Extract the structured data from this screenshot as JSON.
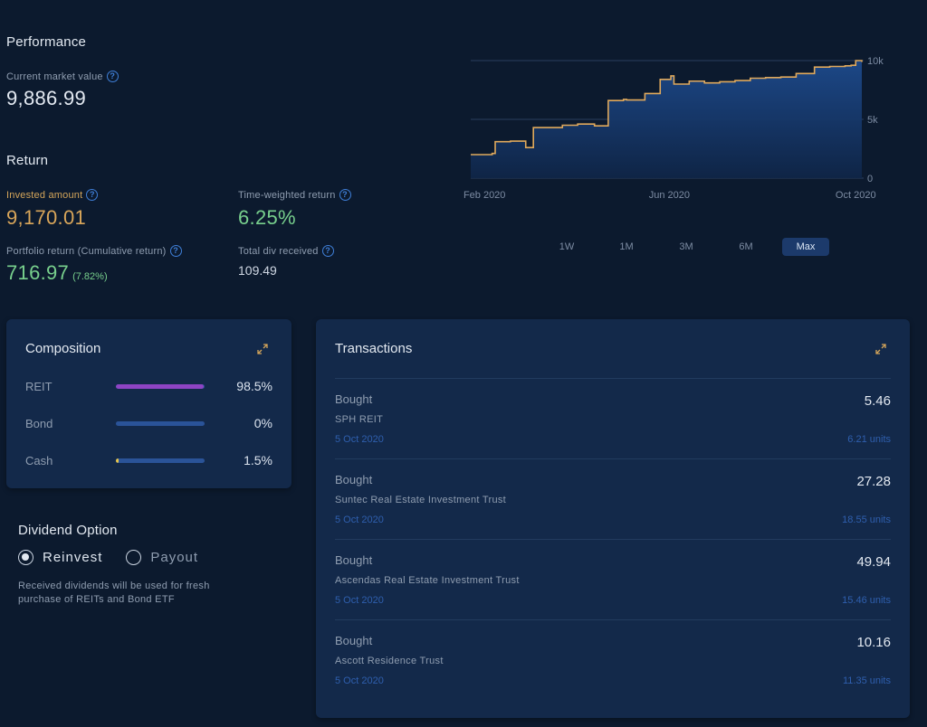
{
  "performance": {
    "heading": "Performance",
    "market_value_label": "Current market value",
    "market_value": "9,886.99"
  },
  "return": {
    "heading": "Return",
    "invested_label": "Invested amount",
    "invested_value": "9,170.01",
    "twr_label": "Time-weighted return",
    "twr_value": "6.25%",
    "portfolio_label": "Portfolio return (Cumulative return)",
    "portfolio_value": "716.97",
    "portfolio_pct": "(7.82%)",
    "div_label": "Total div received",
    "div_value": "109.49"
  },
  "chart_data": {
    "type": "area",
    "x_tick_labels": [
      "Feb 2020",
      "Jun 2020",
      "Oct 2020"
    ],
    "y_tick_labels": [
      "10k",
      "5k",
      "0"
    ],
    "ylim": [
      0,
      10000
    ],
    "x_range": [
      "2020-01-23",
      "2020-10-05"
    ],
    "series": [
      {
        "x": [
          "2020-01-23",
          "2020-02-06",
          "2020-02-08",
          "2020-02-18",
          "2020-02-28",
          "2020-03-04",
          "2020-03-18",
          "2020-03-23",
          "2020-04-02",
          "2020-04-13",
          "2020-04-22",
          "2020-05-02",
          "2020-05-04",
          "2020-05-16",
          "2020-05-26",
          "2020-06-02",
          "2020-06-04",
          "2020-06-14",
          "2020-06-24",
          "2020-07-04",
          "2020-07-14",
          "2020-07-24",
          "2020-08-03",
          "2020-08-13",
          "2020-08-23",
          "2020-09-02",
          "2020-09-04",
          "2020-09-14",
          "2020-09-24",
          "2020-09-28",
          "2020-10-01",
          "2020-10-05"
        ],
        "values": [
          2000,
          2100,
          3100,
          3150,
          2600,
          4300,
          4300,
          4500,
          4600,
          4450,
          6600,
          6700,
          6650,
          7200,
          8400,
          8700,
          8000,
          8250,
          8100,
          8200,
          8300,
          8500,
          8550,
          8600,
          8900,
          8900,
          9450,
          9500,
          9550,
          9600,
          10000,
          9886.99
        ]
      }
    ],
    "line_color": "#e0a95c",
    "area_color": "#1b3f7a",
    "grid": true
  },
  "periods": [
    "1W",
    "1M",
    "3M",
    "6M",
    "Max"
  ],
  "active_period": "Max",
  "composition": {
    "title": "Composition",
    "items": [
      {
        "name": "REIT",
        "value": "98.5%",
        "fraction": 0.985,
        "color": "#8e44c4"
      },
      {
        "name": "Bond",
        "value": "0%",
        "fraction": 0,
        "color": "#2a5398"
      },
      {
        "name": "Cash",
        "value": "1.5%",
        "fraction": 0.015,
        "color": "#e8c54a"
      }
    ]
  },
  "transactions": {
    "title": "Transactions",
    "items": [
      {
        "type": "Bought",
        "name": "SPH REIT",
        "date": "5 Oct 2020",
        "amount": "5.46",
        "units": "6.21 units"
      },
      {
        "type": "Bought",
        "name": "Suntec Real Estate Investment Trust",
        "date": "5 Oct 2020",
        "amount": "27.28",
        "units": "18.55 units"
      },
      {
        "type": "Bought",
        "name": "Ascendas Real Estate Investment Trust",
        "date": "5 Oct 2020",
        "amount": "49.94",
        "units": "15.46 units"
      },
      {
        "type": "Bought",
        "name": "Ascott Residence Trust",
        "date": "5 Oct 2020",
        "amount": "10.16",
        "units": "11.35 units"
      }
    ]
  },
  "dividend": {
    "heading": "Dividend Option",
    "options": [
      "Reinvest",
      "Payout"
    ],
    "selected": "Reinvest",
    "note": "Received dividends will be used for fresh purchase of REITs and Bond ETF"
  },
  "icons": {
    "help": "question-circle-icon",
    "expand": "expand-arrows-icon"
  }
}
